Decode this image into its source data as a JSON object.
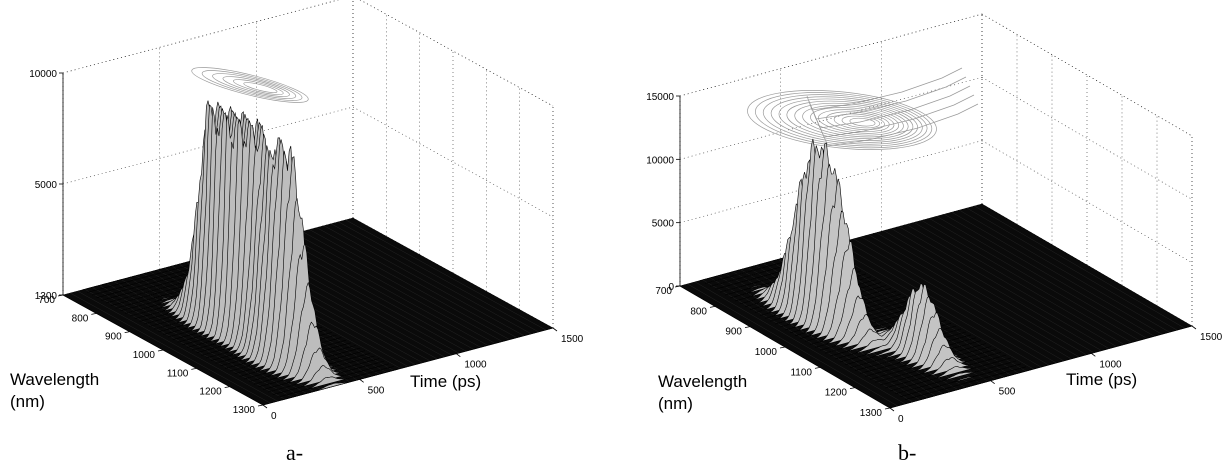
{
  "chart_data": [
    {
      "type": "surface",
      "panel_label": "a-",
      "xlabel": "Time (ps)",
      "ylabel": [
        "Wavelength",
        "(nm)"
      ],
      "zlim": [
        1300,
        10000
      ],
      "z_ticks": [
        "1300",
        "5000",
        "10000"
      ],
      "x_ticks": [
        "0",
        "500",
        "1000",
        "1500"
      ],
      "y_ticks": [
        "700",
        "800",
        "900",
        "1000",
        "1100",
        "1200",
        "1300"
      ],
      "peaks": [
        {
          "t": 350,
          "wl": 1000,
          "height": 9900
        },
        {
          "t": 330,
          "wl": 980,
          "height": 9400
        },
        {
          "t": 370,
          "wl": 1050,
          "height": 8600
        },
        {
          "t": 360,
          "wl": 1180,
          "height": 7300
        },
        {
          "t": 330,
          "wl": 1140,
          "height": 6400
        }
      ],
      "contour": "narrow ridge at top of box",
      "colors": {
        "surface": "#bdbdbd",
        "floor": "#0a0a0a",
        "contour": "#9a9a9a"
      }
    },
    {
      "type": "surface",
      "panel_label": "b-",
      "xlabel": "Time (ps)",
      "ylabel": [
        "Wavelength",
        "(nm)"
      ],
      "zlim": [
        0,
        15000
      ],
      "z_ticks": [
        "0",
        "5000",
        "10000",
        "15000"
      ],
      "x_ticks": [
        "0",
        "500",
        "1000",
        "1500"
      ],
      "y_ticks": [
        "700",
        "800",
        "900",
        "1000",
        "1100",
        "1200",
        "1300"
      ],
      "peaks": [
        {
          "t": 250,
          "wl": 930,
          "height": 11500
        },
        {
          "t": 300,
          "wl": 970,
          "height": 10000
        },
        {
          "t": 420,
          "wl": 1150,
          "height": 5800
        }
      ],
      "contour": "broad plume extending toward long time",
      "colors": {
        "surface": "#c4c4c4",
        "floor": "#0a0a0a",
        "contour": "#9a9a9a"
      }
    }
  ]
}
